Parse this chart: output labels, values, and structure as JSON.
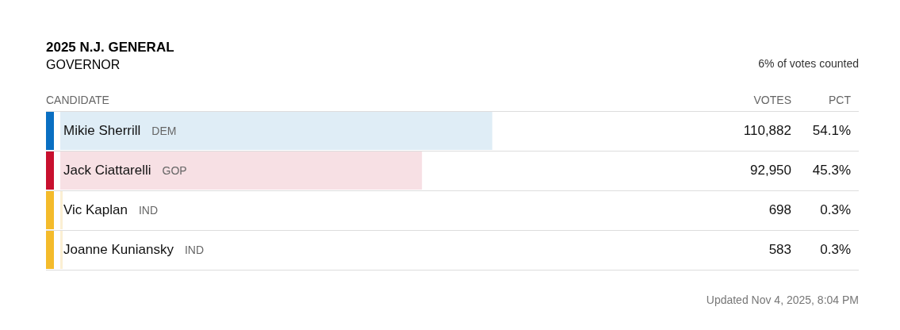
{
  "chart_data": {
    "type": "bar",
    "orientation": "horizontal",
    "title": "2025 N.J. GENERAL",
    "subtitle": "GOVERNOR",
    "ylabel": "CANDIDATE",
    "categories": [
      "Mikie Sherrill",
      "Jack Ciattarelli",
      "Vic Kaplan",
      "Joanne Kuniansky"
    ],
    "values": [
      54.1,
      45.3,
      0.3,
      0.3
    ],
    "colors": [
      "#dfedf6",
      "#f7e0e4",
      "#fbefd3",
      "#fbefd3"
    ],
    "value_labels": [
      "54.1%",
      "45.3%",
      "0.3%",
      "0.3%"
    ],
    "xlim": [
      0,
      100
    ],
    "tick_labels": false,
    "grid": "y",
    "legend": false,
    "annotations": [
      "DEM",
      "110,882",
      "GOP",
      "92,950",
      "IND",
      "698",
      "IND",
      "583",
      "VOTES",
      "PCT",
      "6% of votes counted",
      "Updated Nov 4, 2025, 8:04 PM"
    ]
  }
}
